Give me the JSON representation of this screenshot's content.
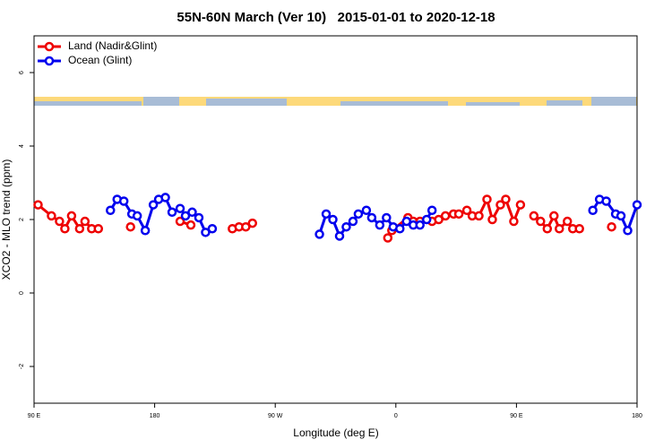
{
  "chart_data": {
    "type": "line",
    "title": "55N-60N March (Ver 10)   2015-01-01 to 2020-12-18",
    "x_label": "Longitude (deg E)",
    "y_label": "XCO2 - MLO trend (ppm)",
    "xlim": [
      90,
      540
    ],
    "ylim": [
      -3,
      7
    ],
    "xticks": [
      {
        "value": 90,
        "label": "90 E"
      },
      180,
      {
        "value": 270,
        "label": "90 W"
      },
      {
        "value": 360,
        "label": "0"
      },
      {
        "value": 450,
        "label": "90 E"
      },
      {
        "value": 540,
        "label": "180"
      }
    ],
    "yticks": [
      -2,
      0,
      2,
      4,
      6
    ],
    "legend": "top-left",
    "series": [
      {
        "name": "Land (Nadir&Glint)",
        "color": "#ee0000",
        "x": [
          93,
          103,
          109,
          113,
          118,
          124,
          128,
          133,
          138,
          null,
          162,
          null,
          199,
          207,
          null,
          238,
          243,
          248,
          253,
          null,
          354,
          357,
          369,
          373,
          378,
          387,
          392,
          397,
          403,
          407,
          413,
          417,
          422,
          428,
          432,
          438,
          442,
          448,
          453,
          null,
          463,
          468,
          473,
          478,
          482,
          488,
          492,
          497,
          null,
          521
        ],
        "values": [
          2.4,
          2.1,
          1.95,
          1.75,
          2.1,
          1.75,
          1.95,
          1.75,
          1.75,
          null,
          1.8,
          null,
          1.95,
          1.85,
          null,
          1.75,
          1.8,
          1.8,
          1.9,
          null,
          1.5,
          1.7,
          2.05,
          1.95,
          1.95,
          1.95,
          2.0,
          2.1,
          2.15,
          2.15,
          2.25,
          2.1,
          2.1,
          2.55,
          2.0,
          2.4,
          2.55,
          1.95,
          2.4,
          null,
          2.1,
          1.95,
          1.75,
          2.1,
          1.75,
          1.95,
          1.75,
          1.75,
          null,
          1.8
        ]
      },
      {
        "name": "Ocean (Glint)",
        "color": "#0000ee",
        "x": [
          147,
          152,
          157,
          163,
          167,
          173,
          179,
          183,
          188,
          193,
          199,
          203,
          208,
          213,
          218,
          223,
          null,
          303,
          308,
          313,
          318,
          323,
          328,
          332,
          338,
          342,
          348,
          353,
          358,
          363,
          368,
          373,
          378,
          383,
          387,
          null,
          507,
          512,
          517,
          524,
          528,
          533,
          540
        ],
        "values": [
          2.25,
          2.55,
          2.5,
          2.15,
          2.1,
          1.7,
          2.4,
          2.55,
          2.6,
          2.2,
          2.3,
          2.1,
          2.2,
          2.05,
          1.65,
          1.75,
          null,
          1.6,
          2.15,
          2.0,
          1.55,
          1.8,
          1.95,
          2.15,
          2.25,
          2.05,
          1.85,
          2.05,
          1.8,
          1.75,
          1.95,
          1.85,
          1.85,
          2.0,
          2.25,
          null,
          2.25,
          2.55,
          2.5,
          2.15,
          2.1,
          1.7,
          2.4
        ]
      }
    ]
  }
}
